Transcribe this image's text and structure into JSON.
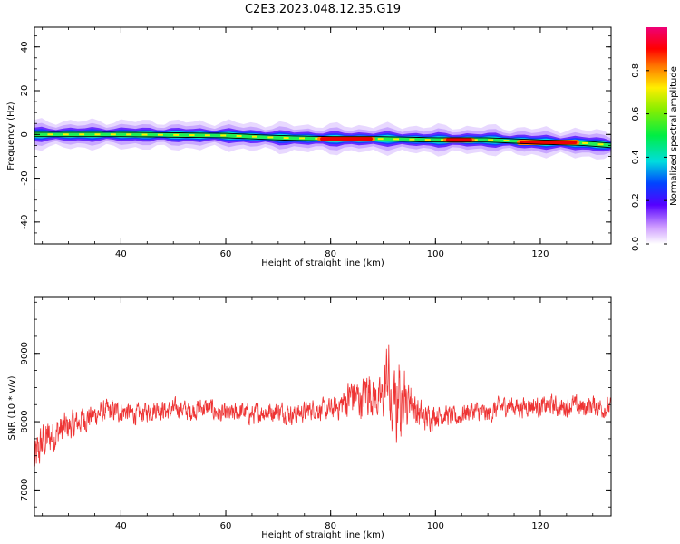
{
  "title": "C2E3.2023.048.12.35.G19",
  "chart_data": [
    {
      "type": "heatmap",
      "xlabel": "Height of straight line (km)",
      "ylabel": "Frequency (Hz)",
      "xlim": [
        23.5,
        133.5
      ],
      "ylim": [
        -50,
        49
      ],
      "xticks": [
        40,
        60,
        80,
        100,
        120
      ],
      "yticks": [
        -40,
        -20,
        0,
        20,
        40
      ],
      "ridge": {
        "x": [
          23.5,
          40,
          60,
          70,
          80,
          90,
          100,
          110,
          120,
          128,
          133.5
        ],
        "y": [
          0,
          0,
          -0.5,
          -1.5,
          -2,
          -2,
          -2.5,
          -2.5,
          -3.5,
          -4,
          -5
        ]
      },
      "peak_segments": [
        {
          "x": [
            78,
            88
          ],
          "amplitude": 0.95
        },
        {
          "x": [
            102,
            107
          ],
          "amplitude": 0.9
        },
        {
          "x": [
            116,
            127
          ],
          "amplitude": 1.0
        }
      ],
      "colorbar": {
        "label": "Normalized spectral amplitude",
        "range": [
          0,
          1
        ],
        "ticks": [
          0.0,
          0.2,
          0.4,
          0.6,
          0.8
        ]
      }
    },
    {
      "type": "line",
      "xlabel": "Height of straight line (km)",
      "ylabel": "SNR (10 * v/v)",
      "xlim": [
        23.5,
        133.5
      ],
      "ylim": [
        6620,
        9820
      ],
      "xticks": [
        40,
        60,
        80,
        100,
        120
      ],
      "yticks": [
        7000,
        8000,
        9000
      ],
      "color": "#ee3333",
      "series": [
        {
          "x": [
            23.5,
            25,
            27,
            29,
            31,
            33,
            35,
            37,
            39,
            41,
            43,
            45,
            47,
            49,
            51,
            53,
            55,
            57,
            59,
            61,
            63,
            65,
            67,
            69,
            71,
            73,
            75,
            77,
            79,
            81,
            83,
            84,
            85,
            86,
            87,
            88,
            89,
            90,
            91,
            91.5,
            92,
            92.5,
            93,
            93.5,
            94,
            94.5,
            95,
            96,
            97,
            98,
            100,
            102,
            104,
            106,
            108,
            110,
            112,
            114,
            116,
            118,
            120,
            122,
            124,
            126,
            128,
            130,
            132,
            133.5
          ],
          "values": [
            7400,
            7700,
            7800,
            7900,
            7950,
            8050,
            8100,
            8150,
            8150,
            8150,
            8100,
            8150,
            8200,
            8150,
            8200,
            8150,
            8200,
            8200,
            8100,
            8100,
            8150,
            8100,
            8150,
            8150,
            8150,
            8100,
            8150,
            8200,
            8150,
            8200,
            8300,
            8400,
            8350,
            8300,
            8500,
            8400,
            8300,
            8350,
            8800,
            8000,
            8400,
            8000,
            8700,
            7900,
            8800,
            8100,
            8400,
            8200,
            8100,
            8050,
            8100,
            8100,
            8050,
            8150,
            8150,
            8100,
            8200,
            8250,
            8200,
            8250,
            8200,
            8250,
            8200,
            8250,
            8200,
            8250,
            8200,
            8200
          ],
          "spread": [
            500,
            450,
            400,
            350,
            300,
            300,
            250,
            250,
            250,
            220,
            220,
            220,
            220,
            220,
            220,
            220,
            220,
            220,
            220,
            220,
            220,
            220,
            220,
            220,
            220,
            220,
            220,
            220,
            250,
            250,
            400,
            500,
            450,
            400,
            600,
            450,
            400,
            500,
            900,
            900,
            700,
            900,
            800,
            700,
            700,
            500,
            450,
            400,
            350,
            300,
            250,
            220,
            220,
            220,
            220,
            220,
            220,
            220,
            220,
            220,
            220,
            220,
            220,
            220,
            220,
            220,
            220,
            220
          ]
        }
      ]
    }
  ]
}
